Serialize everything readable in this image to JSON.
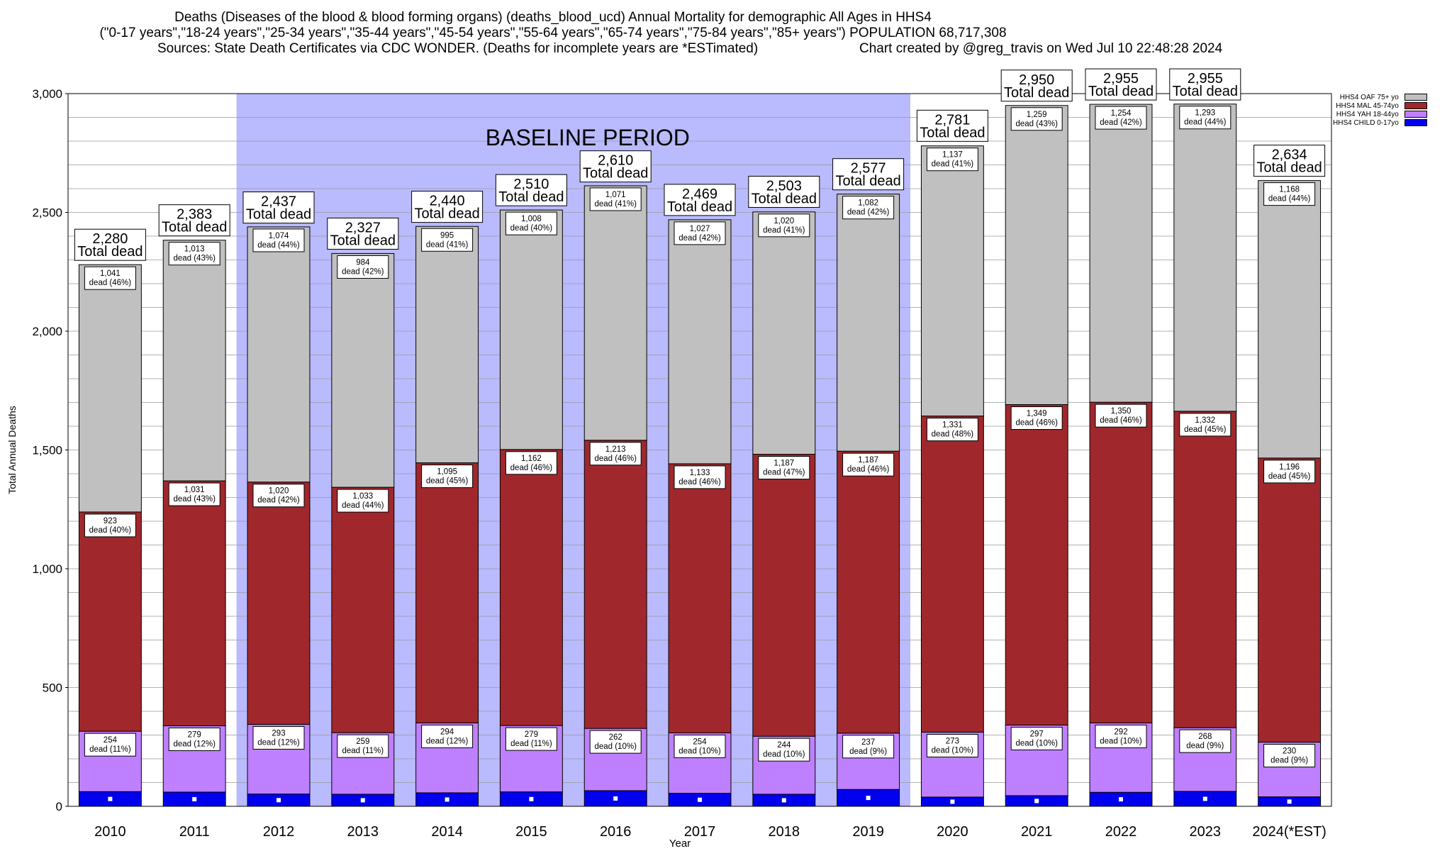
{
  "title_line1": "Deaths (Diseases of the blood & blood forming organs) (deaths_blood_ucd) Annual Mortality for demographic All Ages in HHS4",
  "title_line2": "(\"0-17 years\",\"18-24 years\",\"25-34 years\",\"35-44 years\",\"45-54 years\",\"55-64 years\",\"65-74 years\",\"75-84 years\",\"85+ years\") POPULATION 68,717,308",
  "sources": "Sources: State Death Certificates via CDC WONDER. (Deaths for incomplete years are *ESTimated)",
  "credit": "Chart created by @greg_travis on Wed Jul 10 22:48:28 2024",
  "colors": {
    "child": "#0000ee",
    "yah": "#bf80ff",
    "mal": "#a0282c",
    "oaf": "#c0c0c0",
    "baseline": "#babaff"
  },
  "chart_data": {
    "type": "bar",
    "stacked": true,
    "xlabel": "Year",
    "ylabel": "Total Annual Deaths",
    "ylim": [
      0,
      3000
    ],
    "yticks": [
      "0",
      "500",
      "1,000",
      "1,500",
      "2,000",
      "2,500",
      "3,000"
    ],
    "grid": true,
    "legend_position": "top-right",
    "baseline_label": "BASELINE PERIOD",
    "baseline_range": [
      "2012",
      "2019"
    ],
    "total_label_suffix": "Total dead",
    "categories": [
      "2010",
      "2011",
      "2012",
      "2013",
      "2014",
      "2015",
      "2016",
      "2017",
      "2018",
      "2019",
      "2020",
      "2021",
      "2022",
      "2023",
      "2024(*EST)"
    ],
    "totals": [
      "2,280",
      "2,383",
      "2,437",
      "2,327",
      "2,440",
      "2,510",
      "2,610",
      "2,469",
      "2,503",
      "2,577",
      "2,781",
      "2,950",
      "2,955",
      "2,955",
      "2,634"
    ],
    "total_values": [
      2280,
      2383,
      2437,
      2327,
      2440,
      2510,
      2610,
      2469,
      2503,
      2577,
      2781,
      2950,
      2955,
      2955,
      2634
    ],
    "series": [
      {
        "name": "HHS4 CHILD 0-17yo",
        "key": "child",
        "values": [
          62,
          60,
          52,
          51,
          57,
          61,
          66,
          55,
          51,
          71,
          39,
          45,
          59,
          63,
          40
        ],
        "labels": [
          "",
          "",
          "",
          "",
          "",
          "",
          "",
          "",
          "",
          "",
          "",
          "",
          "",
          "",
          ""
        ]
      },
      {
        "name": "HHS4 YAH 18-44yo",
        "key": "yah",
        "values": [
          254,
          279,
          293,
          259,
          294,
          279,
          262,
          254,
          244,
          237,
          273,
          297,
          292,
          268,
          230
        ],
        "labels": [
          "254\ndead (11%)",
          "279\ndead (12%)",
          "293\ndead (12%)",
          "259\ndead (11%)",
          "294\ndead (12%)",
          "279\ndead (11%)",
          "262\ndead (10%)",
          "254\ndead (10%)",
          "244\ndead (10%)",
          "237\ndead (9%)",
          "273\ndead (10%)",
          "297\ndead (10%)",
          "292\ndead (10%)",
          "268\ndead (9%)",
          "230\ndead (9%)"
        ]
      },
      {
        "name": "HHS4 MAL 45-74yo",
        "key": "mal",
        "values": [
          923,
          1031,
          1020,
          1033,
          1095,
          1162,
          1213,
          1133,
          1187,
          1187,
          1331,
          1349,
          1350,
          1332,
          1196
        ],
        "labels": [
          "923\ndead (40%)",
          "1,031\ndead (43%)",
          "1,020\ndead (42%)",
          "1,033\ndead (44%)",
          "1,095\ndead (45%)",
          "1,162\ndead (46%)",
          "1,213\ndead (46%)",
          "1,133\ndead (46%)",
          "1,187\ndead (47%)",
          "1,187\ndead (46%)",
          "1,331\ndead (48%)",
          "1,349\ndead (46%)",
          "1,350\ndead (46%)",
          "1,332\ndead (45%)",
          "1,196\ndead (45%)"
        ]
      },
      {
        "name": "HHS4 OAF 75+ yo",
        "key": "oaf",
        "values": [
          1041,
          1013,
          1074,
          984,
          995,
          1008,
          1071,
          1027,
          1020,
          1082,
          1137,
          1259,
          1254,
          1293,
          1168
        ],
        "labels": [
          "1,041\ndead (46%)",
          "1,013\ndead (43%)",
          "1,074\ndead (44%)",
          "984\ndead (42%)",
          "995\ndead (41%)",
          "1,008\ndead (40%)",
          "1,071\ndead (41%)",
          "1,027\ndead (42%)",
          "1,020\ndead (41%)",
          "1,082\ndead (42%)",
          "1,137\ndead (41%)",
          "1,259\ndead (43%)",
          "1,254\ndead (42%)",
          "1,293\ndead (44%)",
          "1,168\ndead (44%)"
        ]
      }
    ]
  }
}
